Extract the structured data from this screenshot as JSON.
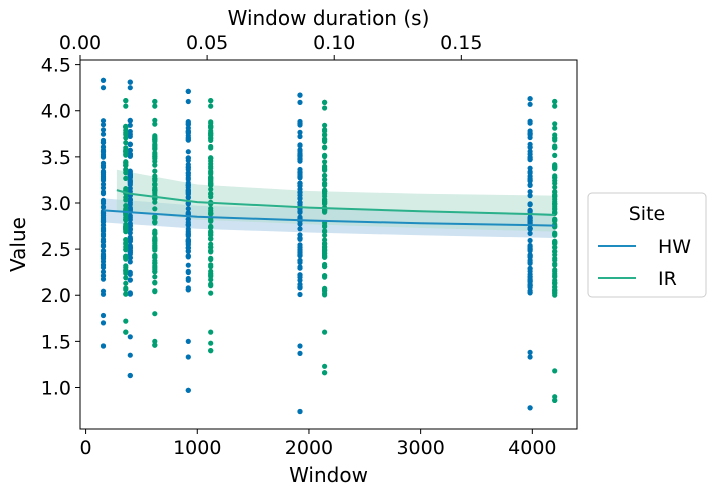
{
  "chart_data": {
    "type": "scatter",
    "xlabel": "Window",
    "ylabel": "Value",
    "secondary_xlabel": "Window duration (s)",
    "xlim": [
      -50,
      4400
    ],
    "ylim": [
      0.55,
      4.55
    ],
    "secondary_xlim": [
      0.0,
      0.1955
    ],
    "x_ticks": [
      0,
      1000,
      2000,
      3000,
      4000
    ],
    "y_ticks": [
      1.0,
      1.5,
      2.0,
      2.5,
      3.0,
      3.5,
      4.0,
      4.5
    ],
    "secondary_x_ticks": [
      0.0,
      0.05,
      0.1,
      0.15
    ],
    "x_tick_labels": [
      "0",
      "1000",
      "2000",
      "3000",
      "4000"
    ],
    "y_tick_labels": [
      "1.0",
      "1.5",
      "2.0",
      "2.5",
      "3.0",
      "3.5",
      "4.0",
      "4.5"
    ],
    "secondary_x_tick_labels": [
      "0.00",
      "0.05",
      "0.10",
      "0.15"
    ],
    "grid": false,
    "legend": {
      "title": "Site",
      "placement": "outside-right",
      "entries": [
        "HW",
        "IR"
      ]
    },
    "series": [
      {
        "name": "HW",
        "color": "#0173b2",
        "fit_color": "#1f8cc0",
        "band_color": "#a6cbe6",
        "windows": [
          160,
          400,
          920,
          1920,
          3980
        ],
        "points": [
          {
            "x": 160,
            "min": 1.45,
            "max": 4.33,
            "outliers_low": [
              1.45,
              1.7,
              1.78
            ],
            "outliers_high": [
              4.33,
              4.25
            ]
          },
          {
            "x": 400,
            "min": 1.13,
            "max": 4.31,
            "outliers_low": [
              1.13,
              1.35,
              1.55
            ],
            "outliers_high": [
              4.31,
              4.25
            ]
          },
          {
            "x": 920,
            "min": 0.97,
            "max": 4.21,
            "outliers_low": [
              0.97,
              1.33,
              1.5
            ],
            "outliers_high": [
              4.21,
              4.1
            ]
          },
          {
            "x": 1920,
            "min": 0.74,
            "max": 4.17,
            "outliers_low": [
              0.74,
              1.37,
              1.45
            ],
            "outliers_high": [
              4.17,
              4.09
            ]
          },
          {
            "x": 3980,
            "min": 0.78,
            "max": 4.13,
            "outliers_low": [
              0.78,
              1.33,
              1.38
            ],
            "outliers_high": [
              4.13,
              4.07
            ]
          }
        ],
        "fit": [
          [
            160,
            2.92
          ],
          [
            400,
            2.9
          ],
          [
            1000,
            2.85
          ],
          [
            2000,
            2.81
          ],
          [
            3000,
            2.78
          ],
          [
            4000,
            2.76
          ],
          [
            4200,
            2.755
          ]
        ],
        "band_upper": [
          [
            160,
            3.05
          ],
          [
            1000,
            2.97
          ],
          [
            2000,
            2.94
          ],
          [
            3000,
            2.91
          ],
          [
            4200,
            2.89
          ]
        ],
        "band_lower": [
          [
            160,
            2.79
          ],
          [
            1000,
            2.72
          ],
          [
            2000,
            2.68
          ],
          [
            3000,
            2.65
          ],
          [
            4200,
            2.62
          ]
        ]
      },
      {
        "name": "IR",
        "color": "#029e73",
        "fit_color": "#2ab08a",
        "band_color": "#b3dfcd",
        "windows": [
          360,
          620,
          1120,
          2140,
          4200
        ],
        "points": [
          {
            "x": 360,
            "min": 1.6,
            "max": 4.11,
            "outliers_low": [
              1.6,
              1.72
            ],
            "outliers_high": [
              4.11,
              4.05
            ]
          },
          {
            "x": 620,
            "min": 1.46,
            "max": 4.1,
            "outliers_low": [
              1.46,
              1.5,
              1.8
            ],
            "outliers_high": [
              4.1,
              4.05
            ]
          },
          {
            "x": 1120,
            "min": 1.4,
            "max": 4.11,
            "outliers_low": [
              1.4,
              1.48,
              1.6
            ],
            "outliers_high": [
              4.11,
              4.05
            ]
          },
          {
            "x": 2140,
            "min": 1.16,
            "max": 4.09,
            "outliers_low": [
              1.16,
              1.23,
              1.6
            ],
            "outliers_high": [
              4.09,
              4.03
            ]
          },
          {
            "x": 4200,
            "min": 0.86,
            "max": 4.1,
            "outliers_low": [
              0.86,
              0.9,
              1.18
            ],
            "outliers_high": [
              4.1,
              4.05
            ]
          }
        ],
        "fit": [
          [
            280,
            3.14
          ],
          [
            400,
            3.1
          ],
          [
            1000,
            3.01
          ],
          [
            2000,
            2.95
          ],
          [
            3000,
            2.91
          ],
          [
            4000,
            2.88
          ],
          [
            4200,
            2.87
          ]
        ],
        "band_upper": [
          [
            280,
            3.36
          ],
          [
            1000,
            3.2
          ],
          [
            2000,
            3.13
          ],
          [
            3000,
            3.1
          ],
          [
            4200,
            3.08
          ]
        ],
        "band_lower": [
          [
            280,
            2.92
          ],
          [
            1000,
            2.82
          ],
          [
            2000,
            2.77
          ],
          [
            3000,
            2.73
          ],
          [
            4200,
            2.69
          ]
        ]
      }
    ]
  }
}
